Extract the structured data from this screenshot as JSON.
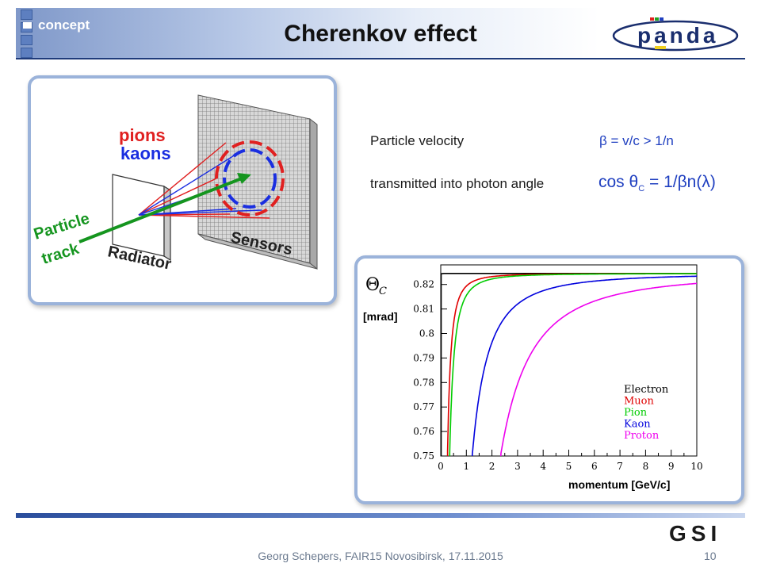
{
  "header": {
    "section_label": "concept",
    "title": "Cherenkov effect",
    "logo_text": "panda"
  },
  "diagram": {
    "pions_label": "pions",
    "kaons_label": "kaons",
    "particle_label": "Particle",
    "track_label": "track",
    "radiator_label": "Radiator",
    "sensors_label": "Sensors"
  },
  "text": {
    "velocity_label": "Particle velocity",
    "velocity_formula": "β = v/c > 1/n",
    "angle_label": "transmitted into photon angle",
    "angle_formula_prefix": "cos θ",
    "angle_formula_sub": "C",
    "angle_formula_suffix": " = 1/βn(λ)"
  },
  "chart_data": {
    "type": "line",
    "ylabel_symbol": "Θ",
    "ylabel_sub": "C",
    "ylabel_unit": "[mrad]",
    "xlabel": "momentum [GeV/c]",
    "xlim": [
      0,
      10
    ],
    "ylim": [
      0.75,
      0.828
    ],
    "xticks": [
      "0",
      "1",
      "2",
      "3",
      "4",
      "5",
      "6",
      "7",
      "8",
      "9",
      "10"
    ],
    "yticks": [
      "0.75",
      "0.76",
      "0.77",
      "0.78",
      "0.79",
      "0.8",
      "0.81",
      "0.82"
    ],
    "asymptote": 0.8245,
    "series": [
      {
        "name": "Electron",
        "color": "#000000",
        "mass": 0.000511
      },
      {
        "name": "Muon",
        "color": "#e00000",
        "mass": 0.1057
      },
      {
        "name": "Pion",
        "color": "#00cc00",
        "mass": 0.1396
      },
      {
        "name": "Kaon",
        "color": "#0000dd",
        "mass": 0.4937
      },
      {
        "name": "Proton",
        "color": "#ee00ee",
        "mass": 0.9383
      }
    ]
  },
  "footer": {
    "text": "Georg Schepers, FAIR15 Novosibirsk, 17.11.2015",
    "page_number": "10",
    "logo_text": "GSI"
  },
  "colors": {
    "header_blue": "#7f98c9",
    "panel_border": "#9bb3da",
    "formula_blue": "#1f3fc0"
  }
}
